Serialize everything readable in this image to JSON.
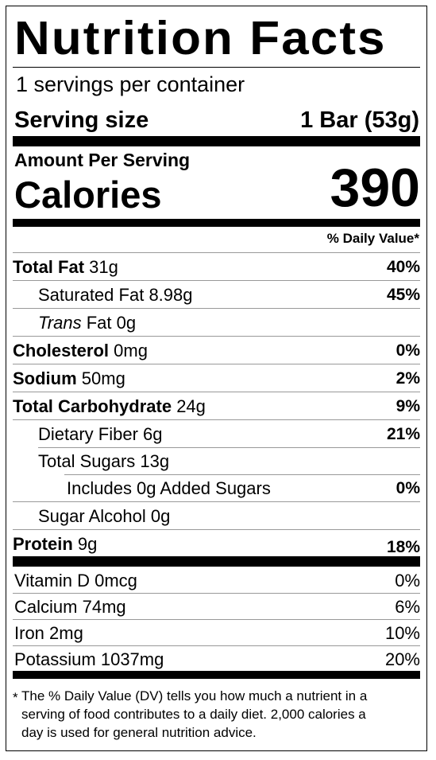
{
  "title": "Nutrition Facts",
  "servings_per_container": "1 servings per container",
  "serving_size": {
    "label": "Serving size",
    "value": "1 Bar (53g)"
  },
  "amount_per_serving": "Amount Per Serving",
  "calories": {
    "label": "Calories",
    "value": "390"
  },
  "daily_value_header": "% Daily Value*",
  "nutrients": [
    {
      "name": "Total Fat",
      "amount": "31g",
      "dv": "40%"
    },
    {
      "name": "Saturated Fat",
      "amount": "8.98g",
      "dv": "45%"
    },
    {
      "name": "Trans",
      "suffix": "Fat",
      "amount": "0g",
      "dv": ""
    },
    {
      "name": "Cholesterol",
      "amount": "0mg",
      "dv": "0%"
    },
    {
      "name": "Sodium",
      "amount": "50mg",
      "dv": "2%"
    },
    {
      "name": "Total Carbohydrate",
      "amount": "24g",
      "dv": "9%"
    },
    {
      "name": "Dietary Fiber",
      "amount": "6g",
      "dv": "21%"
    },
    {
      "name": "Total Sugars",
      "amount": "13g",
      "dv": ""
    },
    {
      "name": "Includes 0g Added Sugars",
      "amount": "",
      "dv": "0%"
    },
    {
      "name": "Sugar Alcohol",
      "amount": "0g",
      "dv": ""
    },
    {
      "name": "Protein",
      "amount": "9g",
      "dv": "18%"
    }
  ],
  "vitamins": [
    {
      "name": "Vitamin D",
      "amount": "0mcg",
      "dv": "0%"
    },
    {
      "name": "Calcium",
      "amount": "74mg",
      "dv": "6%"
    },
    {
      "name": "Iron",
      "amount": "2mg",
      "dv": "10%"
    },
    {
      "name": "Potassium",
      "amount": "1037mg",
      "dv": "20%"
    }
  ],
  "footnote": {
    "star": "*",
    "line1": "The % Daily Value (DV) tells you how much a nutrient in a",
    "line2": "serving of food contributes to a daily diet. 2,000 calories a",
    "line3": "day is used for general nutrition advice."
  }
}
